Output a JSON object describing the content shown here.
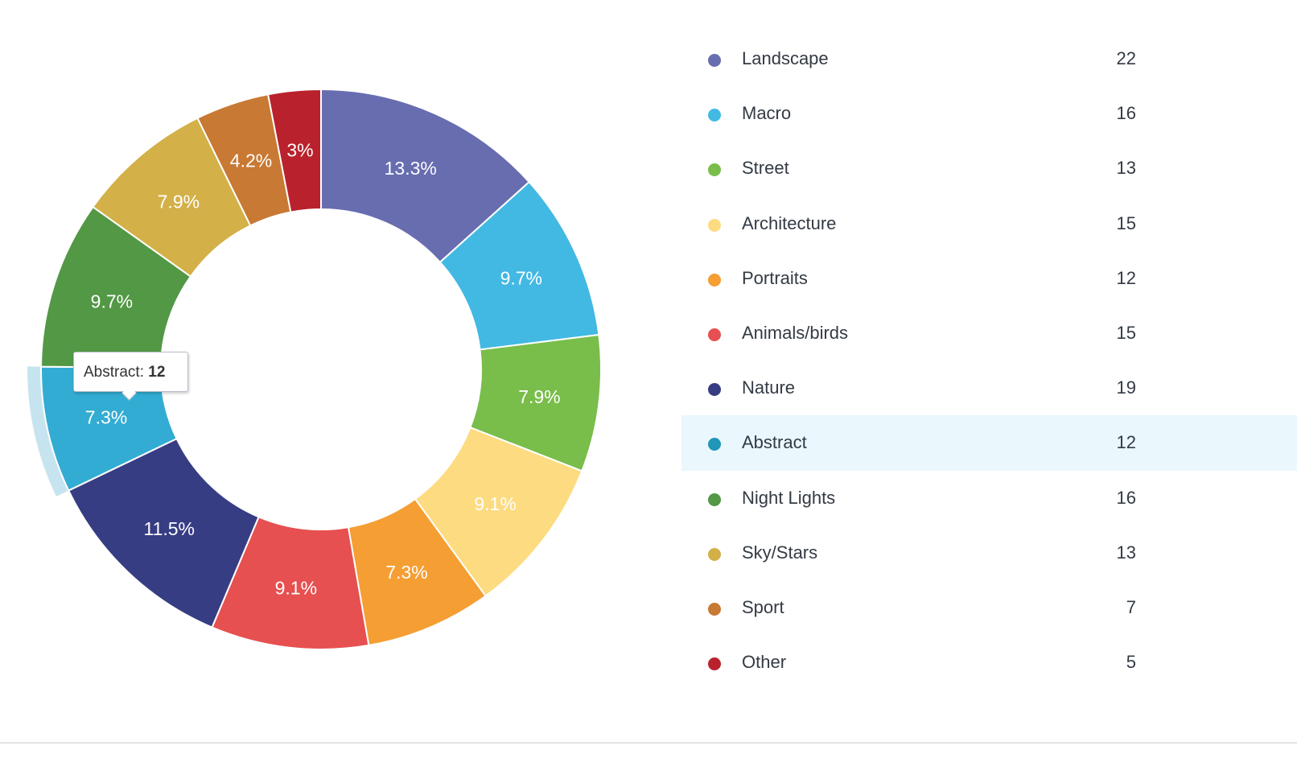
{
  "chart_data": {
    "type": "pie",
    "variant": "donut",
    "categories": [
      "Landscape",
      "Macro",
      "Street",
      "Architecture",
      "Portraits",
      "Animals/birds",
      "Nature",
      "Abstract",
      "Night Lights",
      "Sky/Stars",
      "Sport",
      "Other"
    ],
    "values": [
      22,
      16,
      13,
      15,
      12,
      15,
      19,
      12,
      16,
      13,
      7,
      5
    ],
    "percent_labels": [
      "13.3%",
      "9.7%",
      "7.9%",
      "9.1%",
      "7.3%",
      "9.1%",
      "11.5%",
      "7.3%",
      "9.7%",
      "7.9%",
      "4.2%",
      "3%"
    ],
    "colors": [
      "#676daf",
      "#42b9e3",
      "#79bd4a",
      "#fddb80",
      "#f59e33",
      "#e65050",
      "#373d83",
      "#33acd3",
      "#529845",
      "#d3b048",
      "#c87933",
      "#b9222d"
    ],
    "legend_dot_colors": [
      "#676daf",
      "#42b9e3",
      "#79bd4a",
      "#fddb80",
      "#f59e33",
      "#e65050",
      "#373d83",
      "#2196b8",
      "#529845",
      "#d3b048",
      "#c87933",
      "#b9222d"
    ],
    "highlighted": "Abstract",
    "legend_placement": "right"
  },
  "tooltip": {
    "label": "Abstract:",
    "value": "12"
  }
}
